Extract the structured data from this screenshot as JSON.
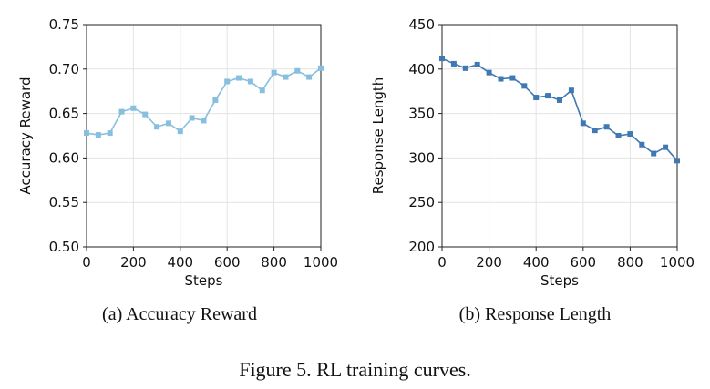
{
  "figure": {
    "caption": "Figure 5. RL training curves."
  },
  "panels": [
    {
      "subcaption": "(a) Accuracy Reward",
      "color": "#87bfdf",
      "chart_data": {
        "type": "line",
        "xlabel": "Steps",
        "ylabel": "Accuracy Reward",
        "xlim": [
          0,
          1000
        ],
        "ylim": [
          0.5,
          0.75
        ],
        "xticks": [
          0,
          200,
          400,
          600,
          800,
          1000
        ],
        "xtick_labels": [
          "0",
          "200",
          "400",
          "600",
          "800",
          "1000"
        ],
        "yticks": [
          0.5,
          0.55,
          0.6,
          0.65,
          0.7,
          0.75
        ],
        "ytick_labels": [
          "0.50",
          "0.55",
          "0.60",
          "0.65",
          "0.70",
          "0.75"
        ],
        "grid": true,
        "marker": "square",
        "series": [
          {
            "x": [
              0,
              50,
              100,
              150,
              200,
              250,
              300,
              350,
              400,
              450,
              500,
              550,
              600,
              650,
              700,
              750,
              800,
              850,
              900,
              950,
              1000
            ],
            "values": [
              0.628,
              0.626,
              0.628,
              0.652,
              0.656,
              0.649,
              0.635,
              0.639,
              0.63,
              0.645,
              0.642,
              0.665,
              0.686,
              0.69,
              0.686,
              0.676,
              0.696,
              0.691,
              0.698,
              0.691,
              0.701
            ]
          }
        ]
      }
    },
    {
      "subcaption": "(b) Response Length",
      "color": "#3f78b2",
      "chart_data": {
        "type": "line",
        "xlabel": "Steps",
        "ylabel": "Response Length",
        "xlim": [
          0,
          1000
        ],
        "ylim": [
          200,
          450
        ],
        "xticks": [
          0,
          200,
          400,
          600,
          800,
          1000
        ],
        "xtick_labels": [
          "0",
          "200",
          "400",
          "600",
          "800",
          "1000"
        ],
        "yticks": [
          200,
          250,
          300,
          350,
          400,
          450
        ],
        "ytick_labels": [
          "200",
          "250",
          "300",
          "350",
          "400",
          "450"
        ],
        "grid": true,
        "marker": "square",
        "series": [
          {
            "x": [
              0,
              50,
              100,
              150,
              200,
              250,
              300,
              350,
              400,
              450,
              500,
              550,
              600,
              650,
              700,
              750,
              800,
              850,
              900,
              950,
              1000
            ],
            "values": [
              412,
              406,
              401,
              405,
              396,
              389,
              390,
              381,
              368,
              370,
              365,
              376,
              339,
              331,
              335,
              325,
              327,
              315,
              305,
              312,
              297
            ]
          }
        ]
      }
    }
  ]
}
